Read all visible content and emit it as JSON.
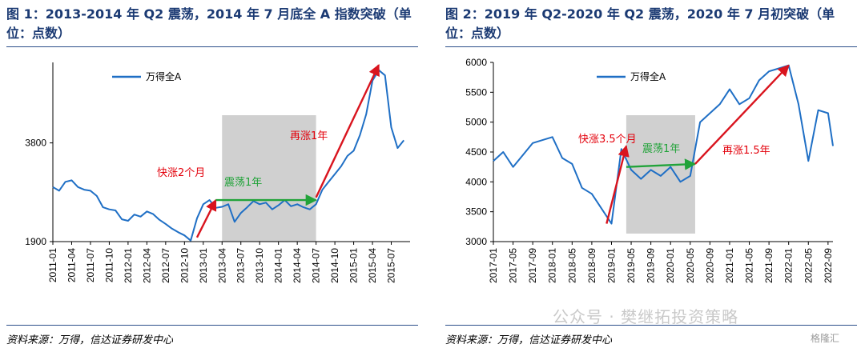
{
  "panels": [
    {
      "title": "图 1：2013-2014 年 Q2 震荡，2014 年 7 月底全 A 指数突破（单位：点数）",
      "source": "资料来源：万得，信达证券研发中心"
    },
    {
      "title": "图 2：2019 年 Q2-2020 年 Q2 震荡，2020 年 7 月初突破（单位：点数）",
      "source": "资料来源：万得，信达证券研发中心"
    }
  ],
  "watermark": {
    "text": "公众号 · 樊继拓投资策略",
    "logo": "格隆汇"
  },
  "chart_data": [
    {
      "type": "line",
      "line_color": "#1f6fc5",
      "legend": "万得全A",
      "legend_position": "top-left",
      "grid": false,
      "y_ticks": [
        1900,
        3800
      ],
      "ylim": [
        1900,
        5350
      ],
      "x_ticks": [
        "2011-01",
        "2011-04",
        "2011-07",
        "2011-10",
        "2012-01",
        "2012-04",
        "2012-07",
        "2012-10",
        "2013-01",
        "2013-04",
        "2013-07",
        "2013-10",
        "2014-01",
        "2014-04",
        "2014-07",
        "2014-10",
        "2015-01",
        "2015-04",
        "2015-07"
      ],
      "x_start": "2011-01",
      "x_end": "2015-10",
      "series": [
        {
          "x": [
            "2011-01",
            "2011-02",
            "2011-03",
            "2011-04",
            "2011-05",
            "2011-06",
            "2011-07",
            "2011-08",
            "2011-09",
            "2011-10",
            "2011-11",
            "2011-12",
            "2012-01",
            "2012-02",
            "2012-03",
            "2012-04",
            "2012-05",
            "2012-06",
            "2012-07",
            "2012-08",
            "2012-09",
            "2012-10",
            "2012-11",
            "2012-12",
            "2013-01",
            "2013-02",
            "2013-03",
            "2013-04",
            "2013-05",
            "2013-06",
            "2013-07",
            "2013-08",
            "2013-09",
            "2013-10",
            "2013-11",
            "2013-12",
            "2014-01",
            "2014-02",
            "2014-03",
            "2014-04",
            "2014-05",
            "2014-06",
            "2014-07",
            "2014-08",
            "2014-09",
            "2014-10",
            "2014-11",
            "2014-12",
            "2015-01",
            "2015-02",
            "2015-03",
            "2015-04",
            "2015-05",
            "2015-06",
            "2015-07",
            "2015-08",
            "2015-09"
          ],
          "y": [
            2950,
            2880,
            3050,
            3080,
            2950,
            2900,
            2880,
            2780,
            2560,
            2520,
            2500,
            2330,
            2300,
            2420,
            2380,
            2480,
            2430,
            2320,
            2240,
            2150,
            2080,
            2020,
            1920,
            2350,
            2620,
            2700,
            2550,
            2570,
            2620,
            2280,
            2450,
            2560,
            2680,
            2620,
            2650,
            2520,
            2600,
            2700,
            2580,
            2620,
            2560,
            2520,
            2620,
            2900,
            3050,
            3200,
            3350,
            3550,
            3650,
            3950,
            4350,
            5000,
            5200,
            5100,
            4100,
            3700,
            3850
          ]
        }
      ],
      "shaded_span": [
        "2013-04",
        "2014-07"
      ],
      "annotations": [
        {
          "text": "快涨2个月",
          "color": "#e3000b"
        },
        {
          "text": "震荡1年",
          "color": "#22a33a"
        },
        {
          "text": "再涨1年",
          "color": "#e3000b"
        }
      ]
    },
    {
      "type": "line",
      "line_color": "#1f6fc5",
      "legend": "万得全A",
      "legend_position": "top-left",
      "grid": false,
      "y_ticks": [
        3000,
        3500,
        4000,
        4500,
        5000,
        5500,
        6000
      ],
      "ylim": [
        3000,
        6000
      ],
      "x_ticks": [
        "2017-01",
        "2017-05",
        "2017-09",
        "2018-01",
        "2018-05",
        "2018-09",
        "2019-01",
        "2019-05",
        "2019-09",
        "2020-01",
        "2020-05",
        "2020-09",
        "2021-01",
        "2021-05",
        "2021-09",
        "2022-01",
        "2022-05",
        "2022-09"
      ],
      "x_start": "2017-01",
      "x_end": "2022-10",
      "series": [
        {
          "x": [
            "2017-01",
            "2017-03",
            "2017-05",
            "2017-07",
            "2017-09",
            "2017-11",
            "2018-01",
            "2018-03",
            "2018-05",
            "2018-07",
            "2018-09",
            "2018-11",
            "2019-01",
            "2019-03",
            "2019-05",
            "2019-07",
            "2019-09",
            "2019-11",
            "2020-01",
            "2020-03",
            "2020-05",
            "2020-07",
            "2020-09",
            "2020-11",
            "2021-01",
            "2021-03",
            "2021-05",
            "2021-07",
            "2021-09",
            "2021-11",
            "2022-01",
            "2022-03",
            "2022-05",
            "2022-07",
            "2022-09",
            "2022-10"
          ],
          "y": [
            4350,
            4500,
            4250,
            4450,
            4650,
            4700,
            4750,
            4400,
            4300,
            3900,
            3800,
            3550,
            3300,
            4550,
            4200,
            4050,
            4200,
            4100,
            4250,
            4000,
            4100,
            5000,
            5150,
            5300,
            5550,
            5300,
            5400,
            5700,
            5850,
            5900,
            5950,
            5300,
            4350,
            5200,
            5150,
            4600
          ]
        }
      ],
      "shaded_span": [
        "2019-04",
        "2020-06"
      ],
      "annotations": [
        {
          "text": "快涨3.5个月",
          "color": "#e3000b"
        },
        {
          "text": "震荡1年",
          "color": "#22a33a"
        },
        {
          "text": "再涨1.5年",
          "color": "#e3000b"
        }
      ]
    }
  ]
}
